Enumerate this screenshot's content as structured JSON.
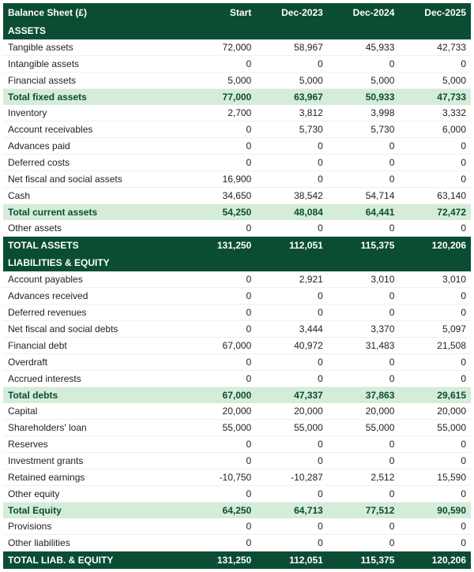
{
  "title": "Balance Sheet (£)",
  "columns": [
    "Start",
    "Dec-2023",
    "Dec-2024",
    "Dec-2025"
  ],
  "sections": [
    {
      "name": "ASSETS",
      "groups": [
        {
          "rows": [
            {
              "label": "Tangible assets",
              "values": [
                "72,000",
                "58,967",
                "45,933",
                "42,733"
              ]
            },
            {
              "label": "Intangible assets",
              "values": [
                "0",
                "0",
                "0",
                "0"
              ]
            },
            {
              "label": "Financial assets",
              "values": [
                "5,000",
                "5,000",
                "5,000",
                "5,000"
              ]
            }
          ],
          "subtotal": {
            "label": "Total fixed assets",
            "values": [
              "77,000",
              "63,967",
              "50,933",
              "47,733"
            ]
          }
        },
        {
          "rows": [
            {
              "label": "Inventory",
              "values": [
                "2,700",
                "3,812",
                "3,998",
                "3,332"
              ]
            },
            {
              "label": "Account receivables",
              "values": [
                "0",
                "5,730",
                "5,730",
                "6,000"
              ]
            },
            {
              "label": "Advances paid",
              "values": [
                "0",
                "0",
                "0",
                "0"
              ]
            },
            {
              "label": "Deferred costs",
              "values": [
                "0",
                "0",
                "0",
                "0"
              ]
            },
            {
              "label": "Net fiscal and social assets",
              "values": [
                "16,900",
                "0",
                "0",
                "0"
              ]
            },
            {
              "label": "Cash",
              "values": [
                "34,650",
                "38,542",
                "54,714",
                "63,140"
              ]
            }
          ],
          "subtotal": {
            "label": "Total current assets",
            "values": [
              "54,250",
              "48,084",
              "64,441",
              "72,472"
            ]
          }
        },
        {
          "rows": [
            {
              "label": "Other assets",
              "values": [
                "0",
                "0",
                "0",
                "0"
              ]
            }
          ]
        }
      ],
      "total": {
        "label": "TOTAL ASSETS",
        "values": [
          "131,250",
          "112,051",
          "115,375",
          "120,206"
        ]
      }
    },
    {
      "name": "LIABILITIES & EQUITY",
      "groups": [
        {
          "rows": [
            {
              "label": "Account payables",
              "values": [
                "0",
                "2,921",
                "3,010",
                "3,010"
              ]
            },
            {
              "label": "Advances received",
              "values": [
                "0",
                "0",
                "0",
                "0"
              ]
            },
            {
              "label": "Deferred revenues",
              "values": [
                "0",
                "0",
                "0",
                "0"
              ]
            },
            {
              "label": "Net fiscal and social debts",
              "values": [
                "0",
                "3,444",
                "3,370",
                "5,097"
              ]
            },
            {
              "label": "Financial debt",
              "values": [
                "67,000",
                "40,972",
                "31,483",
                "21,508"
              ]
            },
            {
              "label": "Overdraft",
              "values": [
                "0",
                "0",
                "0",
                "0"
              ]
            },
            {
              "label": "Accrued interests",
              "values": [
                "0",
                "0",
                "0",
                "0"
              ]
            }
          ],
          "subtotal": {
            "label": "Total debts",
            "values": [
              "67,000",
              "47,337",
              "37,863",
              "29,615"
            ]
          }
        },
        {
          "rows": [
            {
              "label": "Capital",
              "values": [
                "20,000",
                "20,000",
                "20,000",
                "20,000"
              ]
            },
            {
              "label": "Shareholders' loan",
              "values": [
                "55,000",
                "55,000",
                "55,000",
                "55,000"
              ]
            },
            {
              "label": "Reserves",
              "values": [
                "0",
                "0",
                "0",
                "0"
              ]
            },
            {
              "label": "Investment grants",
              "values": [
                "0",
                "0",
                "0",
                "0"
              ]
            },
            {
              "label": "Retained earnings",
              "values": [
                "-10,750",
                "-10,287",
                "2,512",
                "15,590"
              ]
            },
            {
              "label": "Other equity",
              "values": [
                "0",
                "0",
                "0",
                "0"
              ]
            }
          ],
          "subtotal": {
            "label": "Total Equity",
            "values": [
              "64,250",
              "64,713",
              "77,512",
              "90,590"
            ]
          }
        },
        {
          "rows": [
            {
              "label": "Provisions",
              "values": [
                "0",
                "0",
                "0",
                "0"
              ]
            },
            {
              "label": "Other liabilities",
              "values": [
                "0",
                "0",
                "0",
                "0"
              ]
            }
          ]
        }
      ],
      "total": {
        "label": "TOTAL LIAB. & EQUITY",
        "values": [
          "131,250",
          "112,051",
          "115,375",
          "120,206"
        ]
      }
    }
  ],
  "colors": {
    "header_bg": "#0a4d33",
    "header_fg": "#ffffff",
    "subtotal_bg": "#d5ecd9",
    "subtotal_fg": "#0a4d33",
    "row_border": "#f0f0f0"
  }
}
